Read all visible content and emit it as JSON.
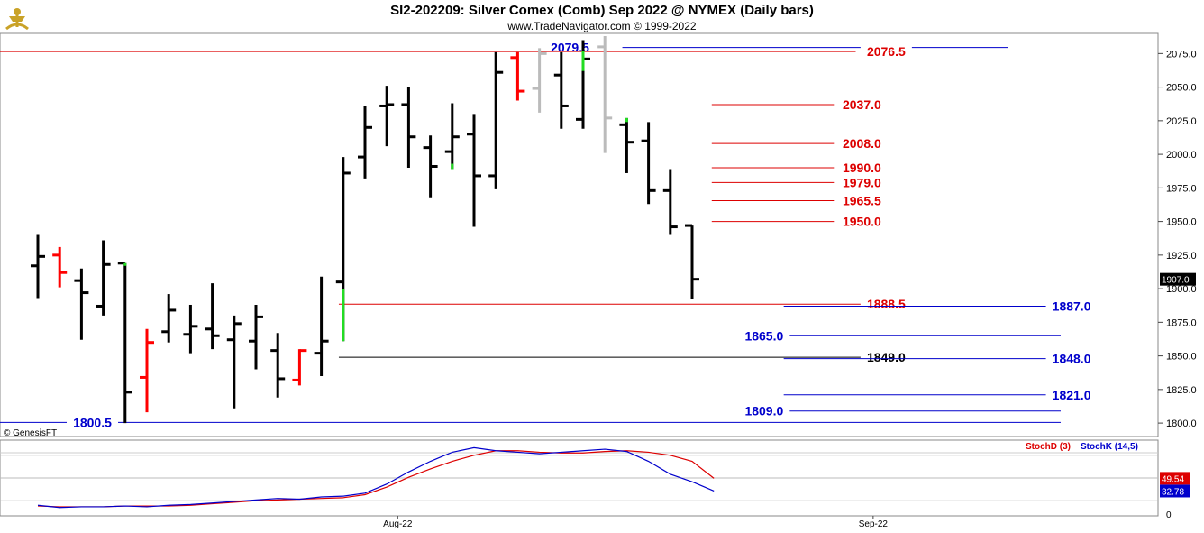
{
  "header": {
    "title": "SI2-202209:  Silver Comex (Comb) Sep 2022 @ NYMEX  (Daily bars)",
    "subtitle": "www.TradeNavigator.com © 1999-2022",
    "copyright": "© GenesisFT"
  },
  "chart_data": [
    {
      "type": "ohlc",
      "ylim": [
        1790,
        2090
      ],
      "yticks": [
        "2075.0",
        "2050.0",
        "2025.0",
        "2000.0",
        "1975.0",
        "1950.0",
        "1925.0",
        "1900.0",
        "1875.0",
        "1850.0",
        "1825.0",
        "1800.0"
      ],
      "ytick_values": [
        2075,
        2050,
        2025,
        2000,
        1975,
        1950,
        1925,
        1900,
        1875,
        1850,
        1825,
        1800
      ],
      "xlabels": [
        {
          "label": "Aug-22",
          "index": 16.5
        },
        {
          "label": "Sep-22",
          "index": 38.3
        }
      ],
      "last_price": "1907.0",
      "bars": [
        {
          "o": 1917,
          "h": 1940,
          "l": 1893,
          "c": 1924,
          "color": "#000000"
        },
        {
          "o": 1925,
          "h": 1931,
          "l": 1901,
          "c": 1912,
          "color": "#ff0000"
        },
        {
          "o": 1906,
          "h": 1915,
          "l": 1862,
          "c": 1897,
          "color": "#000000"
        },
        {
          "o": 1887,
          "h": 1936,
          "l": 1880,
          "c": 1918,
          "color": "#000000"
        },
        {
          "o": 1919,
          "h": 1919,
          "l": 1800,
          "c": 1823,
          "color": "#000000"
        },
        {
          "o": 1834,
          "h": 1870,
          "l": 1808,
          "c": 1860,
          "color": "#ff0000"
        },
        {
          "o": 1868,
          "h": 1896,
          "l": 1860,
          "c": 1884,
          "color": "#000000"
        },
        {
          "o": 1866,
          "h": 1888,
          "l": 1852,
          "c": 1872,
          "color": "#000000"
        },
        {
          "o": 1870,
          "h": 1904,
          "l": 1855,
          "c": 1865,
          "color": "#000000"
        },
        {
          "o": 1862,
          "h": 1880,
          "l": 1811,
          "c": 1874,
          "color": "#000000"
        },
        {
          "o": 1861,
          "h": 1888,
          "l": 1840,
          "c": 1879,
          "color": "#000000"
        },
        {
          "o": 1854,
          "h": 1867,
          "l": 1819,
          "c": 1833,
          "color": "#000000"
        },
        {
          "o": 1832,
          "h": 1855,
          "l": 1828,
          "c": 1854,
          "color": "#ff0000"
        },
        {
          "o": 1852,
          "h": 1909,
          "l": 1835,
          "c": 1861,
          "color": "#000000"
        },
        {
          "o": 1905,
          "h": 1998,
          "l": 1861,
          "c": 1986,
          "color": "#000000"
        },
        {
          "o": 1998,
          "h": 2036,
          "l": 1982,
          "c": 2020,
          "color": "#000000"
        },
        {
          "o": 2036,
          "h": 2051,
          "l": 2006,
          "c": 2037,
          "color": "#000000"
        },
        {
          "o": 2037,
          "h": 2050,
          "l": 1990,
          "c": 2013,
          "color": "#000000"
        },
        {
          "o": 2005,
          "h": 2014,
          "l": 1968,
          "c": 1991,
          "color": "#000000"
        },
        {
          "o": 2002,
          "h": 2038,
          "l": 1989,
          "c": 2013,
          "color": "#000000"
        },
        {
          "o": 2015,
          "h": 2030,
          "l": 1946,
          "c": 1984,
          "color": "#000000"
        },
        {
          "o": 1984,
          "h": 2076,
          "l": 1974,
          "c": 2061,
          "color": "#000000"
        },
        {
          "o": 2072,
          "h": 2076,
          "l": 2040,
          "c": 2047,
          "color": "#ff0000"
        },
        {
          "o": 2049,
          "h": 2079,
          "l": 2031,
          "c": 2075,
          "color": "#bbbbbb"
        },
        {
          "o": 2059,
          "h": 2076,
          "l": 2019,
          "c": 2036,
          "color": "#000000"
        },
        {
          "o": 2026,
          "h": 2085,
          "l": 2019,
          "c": 2071,
          "color": "#000000"
        },
        {
          "o": 2080,
          "h": 2088,
          "l": 2001,
          "c": 2027,
          "color": "#bbbbbb"
        },
        {
          "o": 2022,
          "h": 2027,
          "l": 1986,
          "c": 2009,
          "color": "#000000"
        },
        {
          "o": 2010,
          "h": 2024,
          "l": 1963,
          "c": 1973,
          "color": "#000000"
        },
        {
          "o": 1973,
          "h": 1989,
          "l": 1940,
          "c": 1946,
          "color": "#000000"
        },
        {
          "o": 1947,
          "h": 1947,
          "l": 1892,
          "c": 1907,
          "color": "#000000"
        }
      ],
      "hlines": [
        {
          "label": "2079.5",
          "value": 2079.5,
          "color": "#0000cc",
          "from": 26.8,
          "to": 44.5,
          "labelAt": 24.4,
          "labelAnchor": "middle",
          "labelDy": 0
        },
        {
          "label": "2076.5",
          "value": 2076.5,
          "color": "#dd0000",
          "from": -2,
          "to": 37.5,
          "labelAt": 38.9,
          "labelAnchor": "middle",
          "labelDy": 0
        },
        {
          "label": "2037.0",
          "value": 2037.0,
          "color": "#dd0000",
          "from": 30.9,
          "to": 36.5,
          "labelAt": 36.9,
          "labelAnchor": "start",
          "labelDy": 0
        },
        {
          "label": "2008.0",
          "value": 2008.0,
          "color": "#dd0000",
          "from": 30.9,
          "to": 36.5,
          "labelAt": 36.9,
          "labelAnchor": "start",
          "labelDy": 0
        },
        {
          "label": "1990.0",
          "value": 1990.0,
          "color": "#dd0000",
          "from": 30.9,
          "to": 36.5,
          "labelAt": 36.9,
          "labelAnchor": "start",
          "labelDy": 0
        },
        {
          "label": "1979.0",
          "value": 1979.0,
          "color": "#dd0000",
          "from": 30.9,
          "to": 36.5,
          "labelAt": 36.9,
          "labelAnchor": "start",
          "labelDy": 0
        },
        {
          "label": "1965.5",
          "value": 1965.5,
          "color": "#dd0000",
          "from": 30.9,
          "to": 36.5,
          "labelAt": 36.9,
          "labelAnchor": "start",
          "labelDy": 0
        },
        {
          "label": "1950.0",
          "value": 1950.0,
          "color": "#dd0000",
          "from": 30.9,
          "to": 36.5,
          "labelAt": 36.9,
          "labelAnchor": "start",
          "labelDy": 0
        },
        {
          "label": "1888.5",
          "value": 1888.5,
          "color": "#dd0000",
          "from": 13.8,
          "to": 38.7,
          "labelAt": 38.9,
          "labelAnchor": "middle",
          "labelDy": 0
        },
        {
          "label": "1887.0",
          "value": 1887.0,
          "color": "#0000cc",
          "from": 34.2,
          "to": 46.9,
          "labelAt": 47.4,
          "labelAnchor": "middle",
          "labelDy": 0
        },
        {
          "label": "1865.0",
          "value": 1865.0,
          "color": "#0000cc",
          "from": 34.2,
          "to": 46.9,
          "labelAt": 33.3,
          "labelAnchor": "middle",
          "labelDy": 0
        },
        {
          "label": "1849.0",
          "value": 1849.0,
          "color": "#000000",
          "from": 13.8,
          "to": 38.7,
          "labelAt": 38.9,
          "labelAnchor": "middle",
          "labelDy": 0
        },
        {
          "label": "1848.0",
          "value": 1848.0,
          "color": "#0000cc",
          "from": 34.2,
          "to": 46.9,
          "labelAt": 47.4,
          "labelAnchor": "middle",
          "labelDy": 0
        },
        {
          "label": "1821.0",
          "value": 1821.0,
          "color": "#0000cc",
          "from": 34.2,
          "to": 46.9,
          "labelAt": 47.4,
          "labelAnchor": "middle",
          "labelDy": 0
        },
        {
          "label": "1809.0",
          "value": 1809.0,
          "color": "#0000cc",
          "from": 34.2,
          "to": 46.9,
          "labelAt": 33.3,
          "labelAnchor": "middle",
          "labelDy": 0
        },
        {
          "label": "1800.5",
          "value": 1800.5,
          "color": "#0000cc",
          "from": -2,
          "to": 46.9,
          "labelAt": 2.5,
          "labelAnchor": "middle",
          "labelDy": 0
        }
      ]
    },
    {
      "type": "line",
      "ylim": [
        0,
        100
      ],
      "last_label": "0",
      "bands": [
        80,
        50,
        20
      ],
      "series": [
        {
          "name": "StochD (3)",
          "color": "#dd0000",
          "last": "49.54",
          "values": [
            13,
            12,
            12,
            12,
            13,
            13,
            13,
            14,
            16,
            18,
            20,
            21,
            22,
            23,
            24,
            28,
            38,
            51,
            62,
            72,
            80,
            86,
            86,
            84,
            83,
            83,
            85,
            86,
            84,
            80,
            72,
            49.54
          ]
        },
        {
          "name": "StochK (14,5)",
          "color": "#0000cc",
          "last": "32.78",
          "values": [
            14,
            11,
            12,
            12,
            13,
            12,
            14,
            15,
            17,
            19,
            21,
            23,
            22,
            25,
            26,
            30,
            42,
            58,
            72,
            84,
            90,
            86,
            84,
            82,
            84,
            86,
            88,
            85,
            72,
            55,
            45,
            32.78
          ]
        }
      ]
    }
  ]
}
